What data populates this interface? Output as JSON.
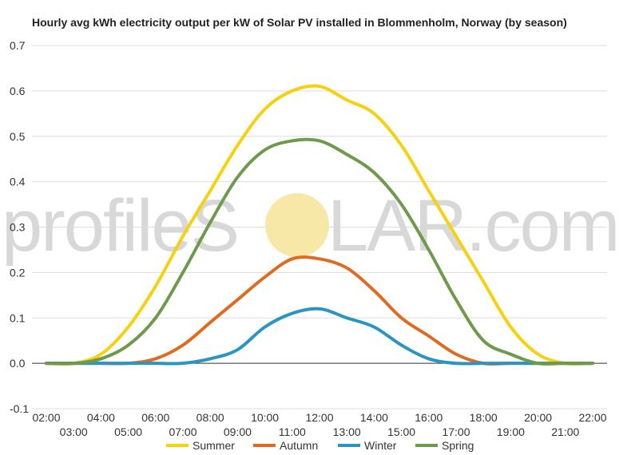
{
  "watermark": {
    "part1": "profileS",
    "part2": "LAR.com",
    "sun_color": "#f8e8a8"
  },
  "chart_data": {
    "type": "line",
    "title": "Hourly avg kWh electricity output per kW of Solar PV installed in Blommenholm, Norway (by season)",
    "xlabel": "",
    "ylabel": "",
    "ylim": [
      -0.1,
      0.7
    ],
    "yticks": [
      "-0.1",
      "0.0",
      "0.1",
      "0.2",
      "0.3",
      "0.4",
      "0.5",
      "0.6",
      "0.7"
    ],
    "grid": true,
    "legend_position": "bottom",
    "x": [
      "02:00",
      "03:00",
      "04:00",
      "05:00",
      "06:00",
      "07:00",
      "08:00",
      "09:00",
      "10:00",
      "11:00",
      "12:00",
      "13:00",
      "14:00",
      "15:00",
      "16:00",
      "17:00",
      "18:00",
      "19:00",
      "20:00",
      "21:00",
      "22:00"
    ],
    "series": [
      {
        "name": "Summer",
        "color": "#f5d10f",
        "values": [
          0.0,
          0.0,
          0.02,
          0.08,
          0.17,
          0.28,
          0.38,
          0.48,
          0.56,
          0.6,
          0.61,
          0.58,
          0.55,
          0.48,
          0.38,
          0.28,
          0.18,
          0.08,
          0.02,
          0.0,
          0.0
        ]
      },
      {
        "name": "Autumn",
        "color": "#e06b20",
        "values": [
          0.0,
          0.0,
          0.0,
          0.0,
          0.01,
          0.04,
          0.09,
          0.14,
          0.19,
          0.23,
          0.23,
          0.21,
          0.16,
          0.1,
          0.06,
          0.02,
          0.0,
          0.0,
          0.0,
          0.0,
          0.0
        ]
      },
      {
        "name": "Winter",
        "color": "#2a95c2",
        "values": [
          0.0,
          0.0,
          0.0,
          0.0,
          0.0,
          0.0,
          0.01,
          0.03,
          0.08,
          0.11,
          0.12,
          0.1,
          0.08,
          0.04,
          0.01,
          0.0,
          0.0,
          0.0,
          0.0,
          0.0,
          0.0
        ]
      },
      {
        "name": "Spring",
        "color": "#6e9a4e",
        "values": [
          0.0,
          0.0,
          0.01,
          0.04,
          0.1,
          0.2,
          0.31,
          0.41,
          0.47,
          0.49,
          0.49,
          0.46,
          0.42,
          0.35,
          0.25,
          0.14,
          0.05,
          0.02,
          0.0,
          0.0,
          0.0
        ]
      }
    ]
  }
}
